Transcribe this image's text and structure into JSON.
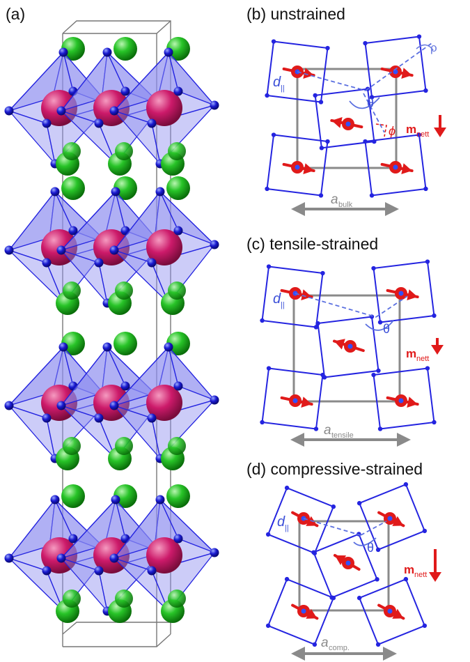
{
  "panels": {
    "a": {
      "label": "(a)"
    },
    "b": {
      "label": "(b) unstrained",
      "lattice": "a",
      "lattice_sub": "bulk",
      "angle": "θ",
      "rho": "ρ",
      "phi": "ϕ",
      "d": "d",
      "d_sub": "||",
      "m": "m",
      "m_sub": "nett"
    },
    "c": {
      "label": "(c) tensile-strained",
      "lattice": "a",
      "lattice_sub": "tensile",
      "angle": "θ",
      "d": "d",
      "d_sub": "||",
      "m": "m",
      "m_sub": "nett"
    },
    "d": {
      "label": "(d) compressive-strained",
      "lattice": "a",
      "lattice_sub": "comp.",
      "angle": "θ",
      "d": "d",
      "d_sub": "||",
      "m": "m",
      "m_sub": "nett"
    }
  },
  "colors": {
    "octahedron": "#2424e0",
    "octahedron_fill": "#8e8ef0",
    "atom_A": "#1fb81f",
    "atom_B": "#c41464",
    "spin": "#e01a1a",
    "cell": "#8a8a8a",
    "annotation": "#5a6fe0"
  }
}
